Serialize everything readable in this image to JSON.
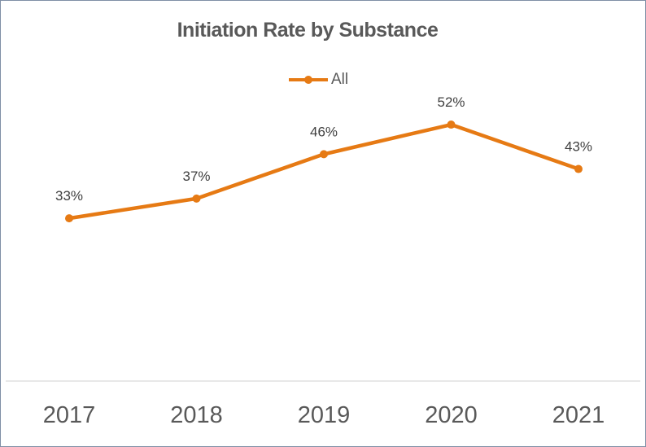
{
  "chart_data": {
    "type": "line",
    "title": "Initiation Rate by Substance",
    "categories": [
      "2017",
      "2018",
      "2019",
      "2020",
      "2021"
    ],
    "series": [
      {
        "name": "All",
        "values": [
          33,
          37,
          46,
          52,
          43
        ],
        "labels": [
          "33%",
          "37%",
          "46%",
          "52%",
          "43%"
        ],
        "color": "#e67a14"
      }
    ],
    "legend": "top",
    "grid": false,
    "xlabel": "",
    "ylabel": "",
    "ylim": [
      0,
      70
    ]
  }
}
